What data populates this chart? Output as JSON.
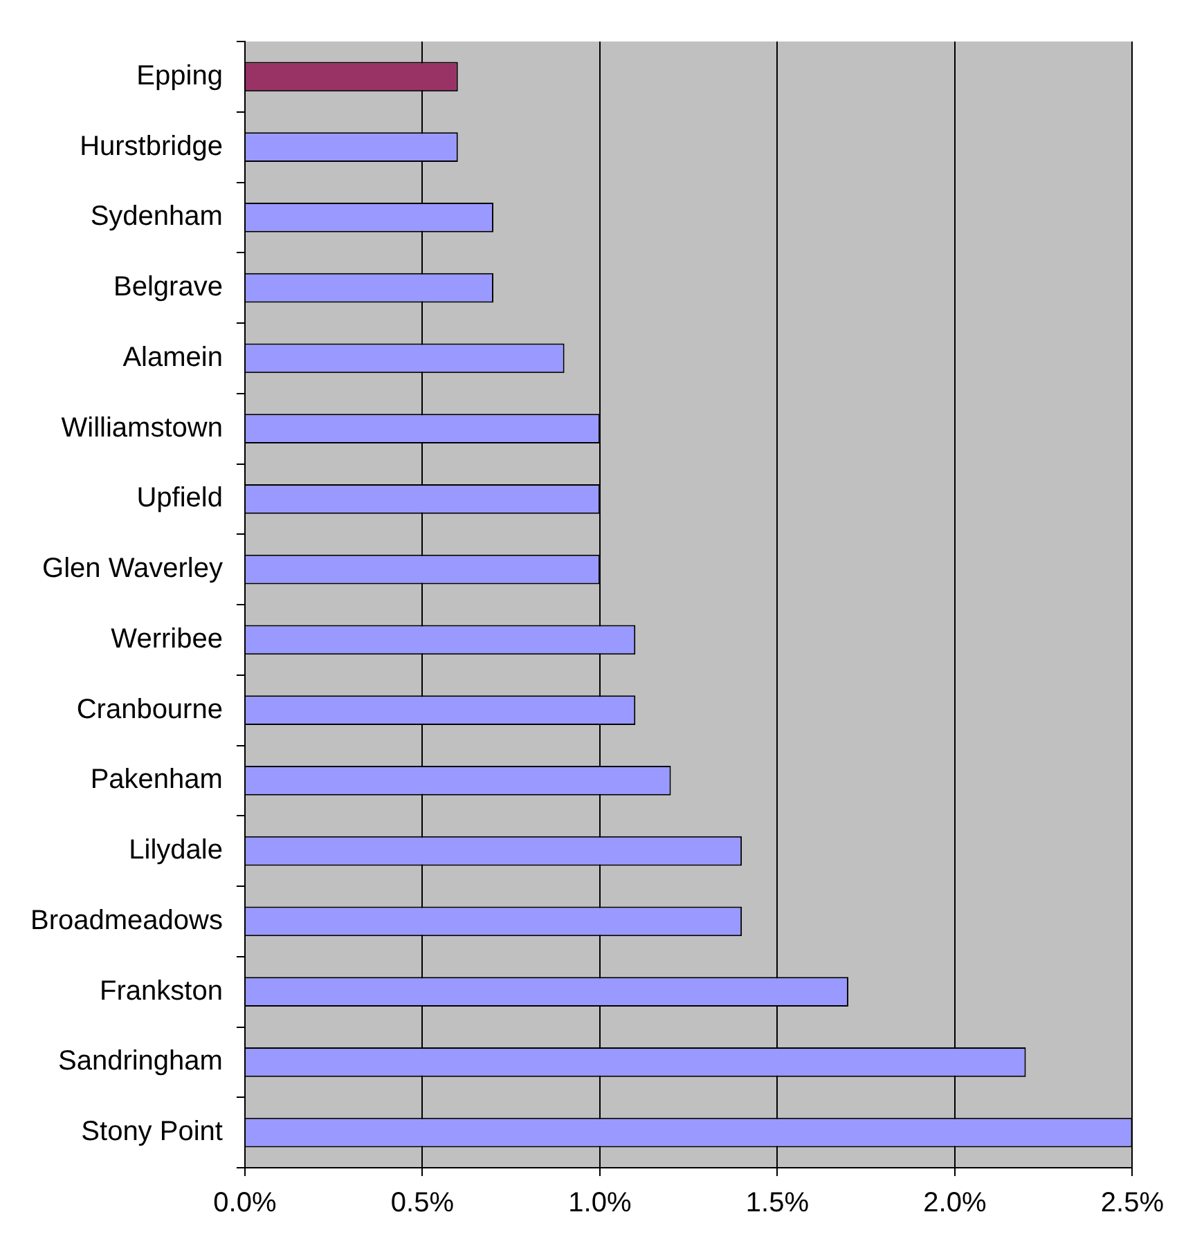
{
  "chart_data": {
    "type": "bar",
    "orientation": "horizontal",
    "categories": [
      "Epping",
      "Hurstbridge",
      "Sydenham",
      "Belgrave",
      "Alamein",
      "Williamstown",
      "Upfield",
      "Glen Waverley",
      "Werribee",
      "Cranbourne",
      "Pakenham",
      "Lilydale",
      "Broadmeadows",
      "Frankston",
      "Sandringham",
      "Stony Point"
    ],
    "values": [
      0.6,
      0.6,
      0.7,
      0.7,
      0.9,
      1.0,
      1.0,
      1.0,
      1.1,
      1.1,
      1.2,
      1.4,
      1.4,
      1.7,
      2.2,
      2.5
    ],
    "colors": [
      "#993366",
      "#9999ff",
      "#9999ff",
      "#9999ff",
      "#9999ff",
      "#9999ff",
      "#9999ff",
      "#9999ff",
      "#9999ff",
      "#9999ff",
      "#9999ff",
      "#9999ff",
      "#9999ff",
      "#9999ff",
      "#9999ff",
      "#9999ff"
    ],
    "xlim": [
      0,
      2.5
    ],
    "xticks": [
      {
        "value": 0,
        "label": "0.0%"
      },
      {
        "value": 0.5,
        "label": "0.5%"
      },
      {
        "value": 1,
        "label": "1.0%"
      },
      {
        "value": 1.5,
        "label": "1.5%"
      },
      {
        "value": 2,
        "label": "2.0%"
      },
      {
        "value": 2.5,
        "label": "2.5%"
      }
    ],
    "grid": "x",
    "legend": false
  }
}
